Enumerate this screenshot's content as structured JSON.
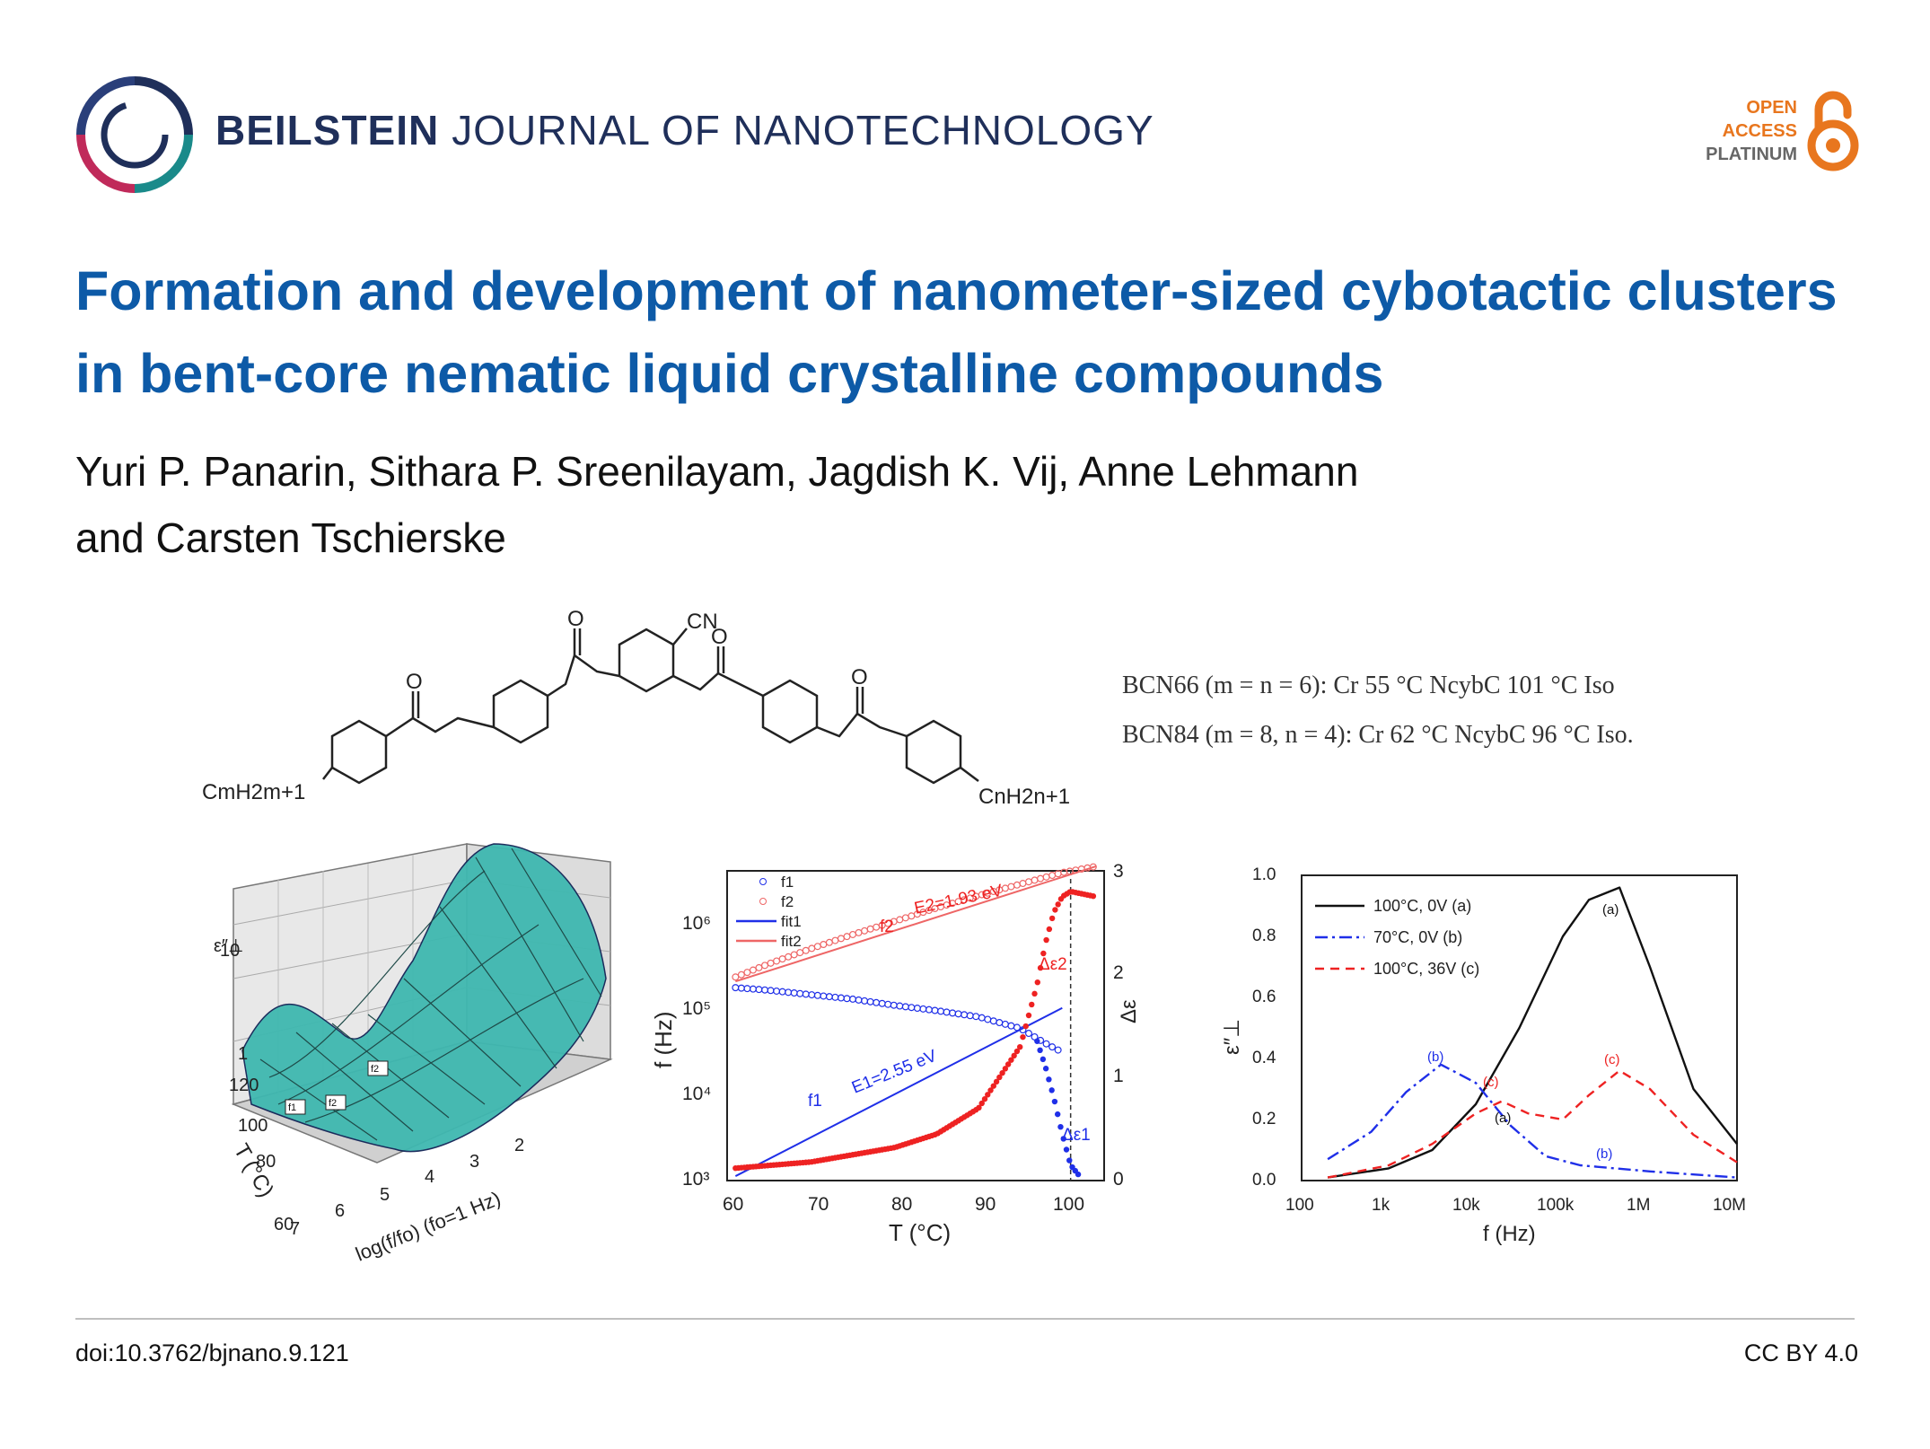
{
  "journal": {
    "name_bold": "BEILSTEIN",
    "name_rest": "JOURNAL OF NANOTECHNOLOGY",
    "badge": {
      "line1": "OPEN",
      "line2": "ACCESS",
      "line3": "PLATINUM"
    }
  },
  "article": {
    "title": "Formation and development of nanometer-sized cybotactic clusters in bent-core nematic liquid crystalline compounds",
    "authors_line1": "Yuri P. Panarin, Sithara P. Sreenilayam, Jagdish K. Vij, Anne Lehmann",
    "authors_line2": "and Carsten Tschierske"
  },
  "figure": {
    "structure": {
      "cn_label": "CN",
      "left_chain": "CmH2m+1",
      "right_chain": "CnH2n+1",
      "o_label": "O",
      "compound1": "BCN66 (m = n = 6): Cr 55 °C NcybC 101 °C Iso",
      "compound2": "BCN84 (m = 8, n = 4): Cr 62 °C NcybC 96 °C Iso."
    },
    "surface_plot": {
      "z_label": "ε″⊥",
      "y_label": "T (°C)",
      "x_label": "log(f/fo) (fo=1 Hz)",
      "z_ticks": [
        "10",
        "1"
      ],
      "y_ticks": [
        "120",
        "100",
        "80",
        "60"
      ],
      "x_ticks": [
        "7",
        "6",
        "5",
        "4",
        "3",
        "2"
      ],
      "markers": [
        "f1",
        "f2",
        "f2"
      ]
    },
    "arrhenius_plot": {
      "xlabel": "T (°C)",
      "ylabel_left": "f (Hz)",
      "ylabel_right": "Δε",
      "x_ticks": [
        "60",
        "70",
        "80",
        "90",
        "100"
      ],
      "y_left_ticks": [
        "10³",
        "10⁴",
        "10⁵",
        "10⁶"
      ],
      "y_right_ticks": [
        "0",
        "1",
        "2",
        "3"
      ],
      "legend": [
        "f1",
        "f2",
        "fit1",
        "fit2"
      ],
      "annotations": [
        "f2",
        "E2=1.93 eV",
        "f1",
        "E1=2.55 eV",
        "Δε2",
        "Δε1"
      ]
    },
    "loss_plot": {
      "xlabel": "f (Hz)",
      "ylabel": "ε″⊥",
      "x_ticks": [
        "100",
        "1k",
        "10k",
        "100k",
        "1M",
        "10M"
      ],
      "y_ticks": [
        "0.0",
        "0.2",
        "0.4",
        "0.6",
        "0.8",
        "1.0"
      ],
      "legend": [
        "100°C,   0V (a)",
        "70°C,   0V (b)",
        "100°C, 36V (c)"
      ],
      "peak_labels": [
        "(a)",
        "(b)",
        "(c)",
        "(a)",
        "(b)",
        "(c)"
      ]
    },
    "colors": {
      "blue": "#1f2fe8",
      "red": "#ee2222",
      "teal": "#3fb8b0",
      "black": "#111111"
    }
  },
  "chart_data": [
    {
      "type": "scatter",
      "xlabel": "T (°C)",
      "ylabel": "f (Hz)",
      "xlim": [
        60,
        105
      ],
      "ylim_log10": [
        3,
        6.5
      ],
      "y2lim": [
        0,
        3
      ],
      "series": [
        {
          "name": "f1",
          "x": [
            61,
            65,
            70,
            75,
            80,
            85,
            90,
            95,
            98,
            100
          ],
          "y_log10": [
            5.18,
            5.15,
            5.1,
            5.05,
            4.98,
            4.92,
            4.85,
            4.72,
            4.55,
            4.45
          ]
        },
        {
          "name": "f2",
          "x": [
            61,
            65,
            70,
            75,
            80,
            85,
            90,
            95,
            100,
            104
          ],
          "y_log10": [
            5.3,
            5.45,
            5.62,
            5.78,
            5.93,
            6.08,
            6.22,
            6.35,
            6.48,
            6.55
          ]
        },
        {
          "name": "fit1",
          "x": [
            61,
            100
          ],
          "y_log10": [
            3.05,
            4.95
          ]
        },
        {
          "name": "fit2",
          "x": [
            61,
            104
          ],
          "y_log10": [
            5.25,
            6.55
          ]
        }
      ],
      "delta_eps1": {
        "x": [
          97,
          98,
          99,
          100,
          101,
          102
        ],
        "y": [
          1.35,
          1.1,
          0.8,
          0.45,
          0.15,
          0.05
        ]
      },
      "delta_eps2": {
        "x": [
          61,
          70,
          80,
          85,
          90,
          95,
          97,
          98,
          99,
          100,
          101,
          104
        ],
        "y": [
          0.12,
          0.18,
          0.32,
          0.45,
          0.7,
          1.3,
          1.9,
          2.3,
          2.6,
          2.75,
          2.8,
          2.75
        ]
      }
    },
    {
      "type": "line",
      "xlabel": "f (Hz)",
      "ylabel": "ε″⊥",
      "xlim_log10": [
        2,
        7
      ],
      "ylim": [
        0,
        1.0
      ],
      "series": [
        {
          "name": "100°C,   0V (a)",
          "x_log10": [
            2.3,
            3,
            3.5,
            4,
            4.5,
            5,
            5.3,
            5.65,
            6,
            6.5,
            7
          ],
          "y": [
            0.01,
            0.04,
            0.1,
            0.25,
            0.5,
            0.8,
            0.92,
            0.96,
            0.7,
            0.3,
            0.12
          ]
        },
        {
          "name": "70°C,   0V (b)",
          "x_log10": [
            2.3,
            2.8,
            3.2,
            3.6,
            4,
            4.4,
            4.8,
            5.2,
            5.6,
            6,
            6.5,
            7
          ],
          "y": [
            0.07,
            0.16,
            0.29,
            0.38,
            0.32,
            0.18,
            0.08,
            0.05,
            0.04,
            0.03,
            0.02,
            0.01
          ]
        },
        {
          "name": "100°C, 36V (c)",
          "x_log10": [
            2.3,
            3,
            3.5,
            4,
            4.3,
            4.6,
            5,
            5.3,
            5.65,
            6,
            6.5,
            7
          ],
          "y": [
            0.01,
            0.05,
            0.12,
            0.22,
            0.26,
            0.22,
            0.2,
            0.28,
            0.36,
            0.3,
            0.15,
            0.06
          ]
        }
      ]
    }
  ],
  "footer": {
    "doi": "doi:10.3762/bjnano.9.121",
    "license": "CC BY 4.0"
  }
}
